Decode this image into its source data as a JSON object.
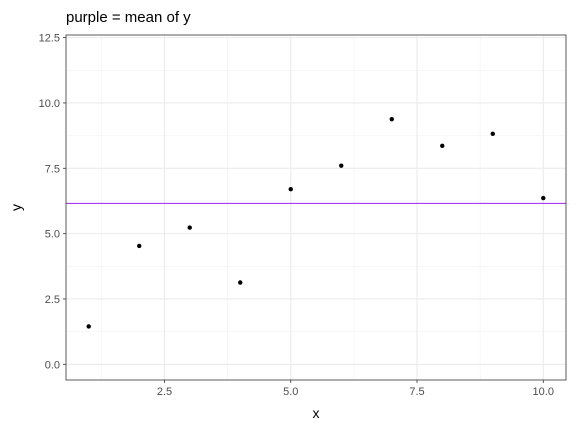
{
  "chart_data": {
    "type": "scatter",
    "title": "purple = mean of y",
    "xlabel": "x",
    "ylabel": "y",
    "xlim": [
      0.55,
      10.45
    ],
    "ylim": [
      -0.6,
      12.6
    ],
    "xticks": [
      2.5,
      5.0,
      7.5,
      10.0
    ],
    "xtick_labels": [
      "2.5",
      "5.0",
      "7.5",
      "10.0"
    ],
    "yticks": [
      0.0,
      2.5,
      5.0,
      7.5,
      10.0,
      12.5
    ],
    "ytick_labels": [
      "0.0",
      "2.5",
      "5.0",
      "7.5",
      "10.0",
      "12.5"
    ],
    "grid": true,
    "points": [
      {
        "x": 1,
        "y": 1.45
      },
      {
        "x": 2,
        "y": 4.53
      },
      {
        "x": 3,
        "y": 5.23
      },
      {
        "x": 4,
        "y": 3.13
      },
      {
        "x": 5,
        "y": 6.7
      },
      {
        "x": 6,
        "y": 7.6
      },
      {
        "x": 7,
        "y": 9.38
      },
      {
        "x": 8,
        "y": 8.36
      },
      {
        "x": 9,
        "y": 8.82
      },
      {
        "x": 10,
        "y": 6.36
      }
    ],
    "mean_line": {
      "y": 6.16,
      "color": "#a020f0"
    }
  }
}
